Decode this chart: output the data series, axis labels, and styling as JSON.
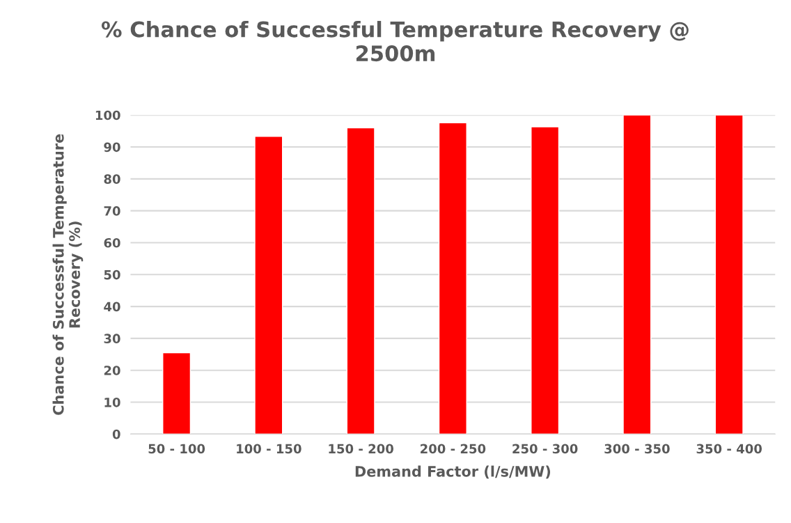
{
  "chart_data": {
    "type": "bar",
    "title": "% Chance of Successful Temperature Recovery @\n2500m",
    "xlabel": "Demand Factor (l/s/MW)",
    "ylabel": "Chance of Successful Temperature\nRecovery (%)",
    "categories": [
      "50 - 100",
      "100 - 150",
      "150 - 200",
      "200 - 250",
      "250 - 300",
      "300 - 350",
      "350 - 400"
    ],
    "values": [
      25.5,
      93.3,
      96.0,
      97.6,
      96.3,
      100,
      100
    ],
    "color": "#ff0000",
    "ylim": [
      0,
      100
    ],
    "yticks": [
      0,
      10,
      20,
      30,
      40,
      50,
      60,
      70,
      80,
      90,
      100
    ],
    "grid": "y",
    "legend": false
  }
}
